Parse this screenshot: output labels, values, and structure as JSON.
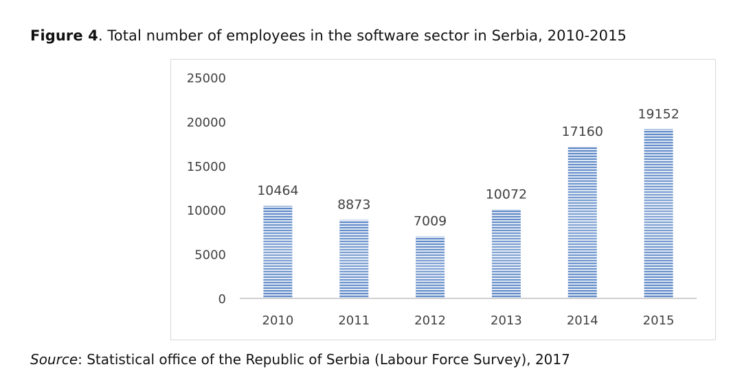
{
  "caption": {
    "label": "Figure 4",
    "text": ". Total number of employees in the software sector in Serbia, 2010-2015"
  },
  "source": {
    "label": "Source",
    "text": ": Statistical office of the Republic of Serbia (Labour Force Survey), 2017"
  },
  "colors": {
    "bar_main": "#5b86c5",
    "bar_light": "#dbe5f3",
    "axis": "#bfbfbf",
    "text": "#404040"
  },
  "chart_data": {
    "type": "bar",
    "categories": [
      "2010",
      "2011",
      "2012",
      "2013",
      "2014",
      "2015"
    ],
    "values": [
      10464,
      8873,
      7009,
      10072,
      17160,
      19152
    ],
    "data_labels": [
      "10464",
      "8873",
      "7009",
      "10072",
      "17160",
      "19152"
    ],
    "yticks": [
      0,
      5000,
      10000,
      15000,
      20000,
      25000
    ],
    "ylim": [
      0,
      25000
    ],
    "grid": false,
    "legend": "none",
    "title": "",
    "xlabel": "",
    "ylabel": ""
  }
}
